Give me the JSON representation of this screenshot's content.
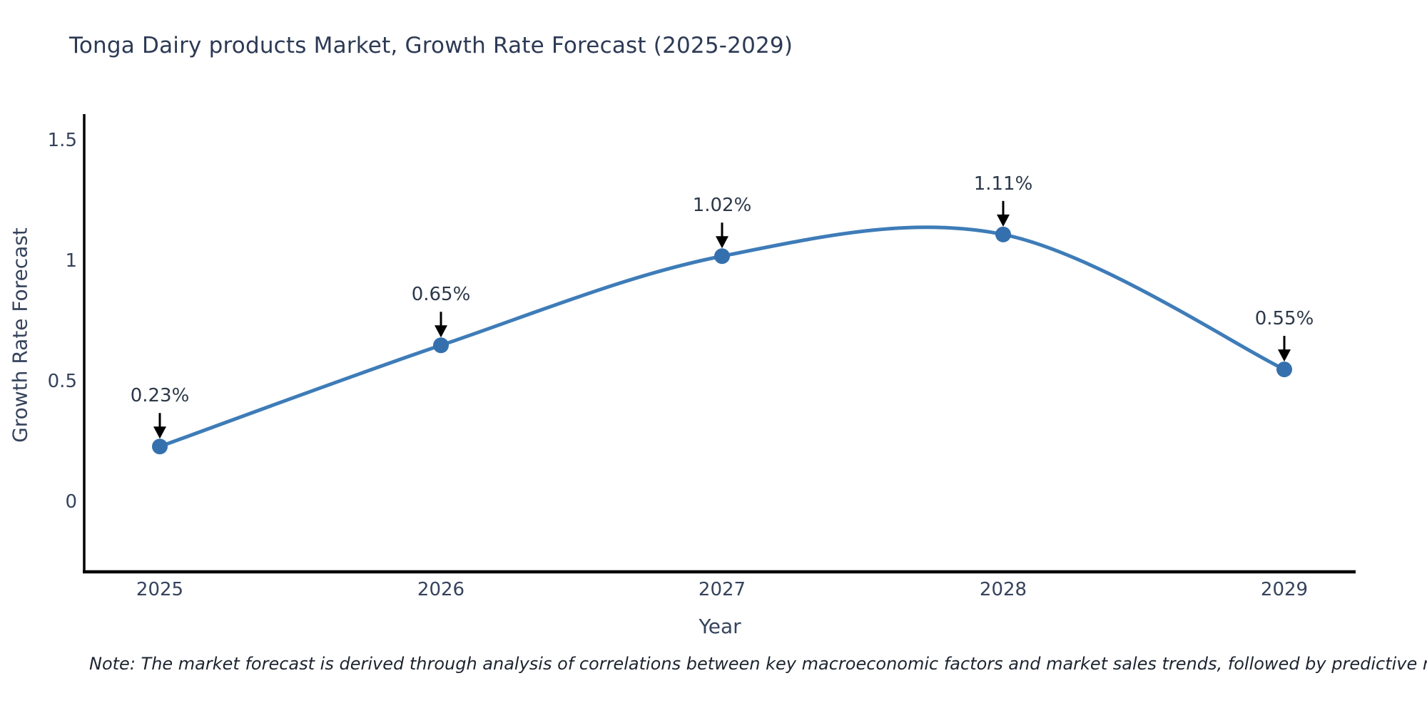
{
  "title": "Tonga Dairy products Market, Growth Rate Forecast (2025-2029)",
  "footnote": "Note: The market forecast is derived through analysis of correlations between key macroeconomic factors and market sales trends, followed by predictive modeling to project future sales",
  "chart_data": {
    "type": "line",
    "smooth": true,
    "title": "Tonga Dairy products Market, Growth Rate Forecast (2025-2029)",
    "xlabel": "Year",
    "ylabel": "Growth Rate Forecast",
    "categories": [
      "2025",
      "2026",
      "2027",
      "2028",
      "2029"
    ],
    "values": [
      0.23,
      0.65,
      1.02,
      1.11,
      0.55
    ],
    "point_labels": [
      "0.23%",
      "0.65%",
      "1.02%",
      "1.11%",
      "0.55%"
    ],
    "yticks": [
      0,
      0.5,
      1,
      1.5
    ],
    "ytick_labels": [
      "0",
      "0.5",
      "1",
      "1.5"
    ],
    "ylim": [
      -0.29,
      1.61
    ],
    "grid": false,
    "legend": "none",
    "annotation_style": "value labels with black down arrows above each marker"
  },
  "colors": {
    "title_text": "#2d3a55",
    "tick_text": "#36435c",
    "annotation_text": "#2c3849",
    "footnote_text": "#1d2430",
    "line": "#3e7cb8",
    "marker": "#3470ad",
    "axis": "#000000",
    "arrow": "#000000",
    "background": "#ffffff"
  }
}
